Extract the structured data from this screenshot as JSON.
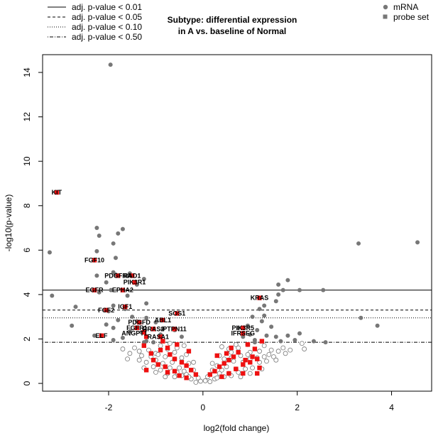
{
  "chart_data": {
    "type": "scatter",
    "title_lines": [
      "Subtype: differential expression",
      "in A vs. baseline of Normal"
    ],
    "xlabel": "log2(fold change)",
    "ylabel": "-log10(p-value)",
    "xlim": [
      -3.4,
      4.85
    ],
    "ylim": [
      -0.35,
      14.8
    ],
    "xticks": [
      -2,
      0,
      2,
      4
    ],
    "yticks": [
      0,
      2,
      4,
      6,
      8,
      10,
      12,
      14
    ],
    "grid": false,
    "thresholds": [
      {
        "label": "adj. p-value < 0.01",
        "style": "solid",
        "y": 4.2
      },
      {
        "label": "adj. p-value < 0.05",
        "style": "dashed",
        "y": 3.3
      },
      {
        "label": "adj. p-value < 0.10",
        "style": "dotted",
        "y": 2.95
      },
      {
        "label": "adj. p-value < 0.50",
        "style": "dotdash",
        "y": 1.85
      }
    ],
    "legend_position": "top-right",
    "series": [
      {
        "name": "mRNA",
        "marker": "circle",
        "color": "#777777",
        "points": [
          [
            -1.96,
            14.35
          ],
          [
            -3.25,
            5.9
          ],
          [
            -3.2,
            3.95
          ],
          [
            -2.7,
            3.45
          ],
          [
            -2.78,
            2.6
          ],
          [
            -2.25,
            7.0
          ],
          [
            -2.2,
            6.65
          ],
          [
            -1.8,
            6.75
          ],
          [
            -1.9,
            6.3
          ],
          [
            -1.7,
            6.95
          ],
          [
            -2.25,
            5.95
          ],
          [
            -2.25,
            4.85
          ],
          [
            -1.85,
            5.65
          ],
          [
            -1.9,
            5.0
          ],
          [
            -1.85,
            4.9
          ],
          [
            -1.55,
            4.95
          ],
          [
            -1.25,
            4.7
          ],
          [
            -1.4,
            4.45
          ],
          [
            -2.05,
            4.55
          ],
          [
            -1.95,
            4.2
          ],
          [
            -2.2,
            4.1
          ],
          [
            -1.6,
            3.95
          ],
          [
            -1.2,
            3.6
          ],
          [
            -1.9,
            3.5
          ],
          [
            -1.65,
            3.35
          ],
          [
            -2.0,
            3.25
          ],
          [
            -1.5,
            3.0
          ],
          [
            -1.2,
            2.95
          ],
          [
            -1.8,
            2.85
          ],
          [
            -1.4,
            2.8
          ],
          [
            -1.0,
            2.75
          ],
          [
            -2.05,
            2.65
          ],
          [
            -1.9,
            2.5
          ],
          [
            -1.55,
            2.35
          ],
          [
            -1.3,
            2.3
          ],
          [
            -0.85,
            2.45
          ],
          [
            -0.6,
            2.4
          ],
          [
            -0.45,
            2.1
          ],
          [
            -1.7,
            2.05
          ],
          [
            -1.2,
            1.9
          ],
          [
            -0.9,
            2.2
          ],
          [
            -2.3,
            2.15
          ],
          [
            -1.9,
            1.95
          ],
          [
            3.3,
            6.3
          ],
          [
            4.55,
            6.35
          ],
          [
            2.55,
            4.2
          ],
          [
            2.05,
            4.2
          ],
          [
            1.8,
            4.65
          ],
          [
            1.6,
            4.45
          ],
          [
            1.7,
            4.2
          ],
          [
            1.6,
            4.0
          ],
          [
            1.55,
            3.7
          ],
          [
            1.3,
            3.5
          ],
          [
            1.2,
            3.35
          ],
          [
            1.05,
            3.0
          ],
          [
            1.25,
            2.8
          ],
          [
            1.3,
            3.05
          ],
          [
            0.95,
            2.6
          ],
          [
            1.15,
            2.4
          ],
          [
            1.35,
            2.15
          ],
          [
            1.45,
            2.55
          ],
          [
            1.55,
            2.1
          ],
          [
            1.65,
            1.9
          ],
          [
            1.8,
            2.15
          ],
          [
            1.95,
            1.95
          ],
          [
            2.05,
            2.25
          ],
          [
            2.1,
            1.8
          ],
          [
            0.85,
            2.1
          ],
          [
            0.75,
            2.5
          ],
          [
            1.0,
            2.2
          ],
          [
            1.1,
            1.95
          ],
          [
            3.35,
            2.95
          ],
          [
            3.7,
            2.6
          ],
          [
            2.6,
            1.85
          ],
          [
            2.35,
            1.9
          ],
          [
            -0.2,
            0.6
          ],
          [
            0.2,
            0.6
          ],
          [
            -0.3,
            0.9
          ],
          [
            0.3,
            0.8
          ],
          [
            -0.45,
            1.15
          ],
          [
            0.45,
            1.1
          ],
          [
            -0.6,
            1.4
          ],
          [
            0.6,
            1.4
          ],
          [
            -0.75,
            1.55
          ],
          [
            0.75,
            1.6
          ],
          [
            -0.9,
            1.7
          ],
          [
            0.95,
            1.75
          ],
          [
            -1.05,
            1.85
          ],
          [
            1.1,
            1.85
          ],
          [
            -1.25,
            1.85
          ],
          [
            1.3,
            1.7
          ],
          [
            -0.35,
            0.4
          ],
          [
            0.35,
            0.45
          ],
          [
            -0.5,
            0.7
          ],
          [
            0.5,
            0.75
          ],
          [
            -0.65,
            0.95
          ],
          [
            0.65,
            1.0
          ],
          [
            -0.8,
            1.2
          ],
          [
            0.8,
            1.25
          ],
          [
            -1.0,
            1.35
          ],
          [
            1.0,
            1.4
          ],
          [
            -1.15,
            1.5
          ],
          [
            1.2,
            1.45
          ],
          [
            -1.35,
            1.45
          ],
          [
            1.4,
            1.3
          ],
          [
            -0.1,
            0.25
          ],
          [
            0.1,
            0.3
          ],
          [
            -0.25,
            0.2
          ],
          [
            0.25,
            0.2
          ],
          [
            -0.4,
            0.55
          ],
          [
            0.4,
            0.6
          ],
          [
            -0.55,
            0.5
          ],
          [
            0.55,
            0.45
          ],
          [
            -0.7,
            0.7
          ],
          [
            0.7,
            0.65
          ],
          [
            -0.85,
            0.9
          ],
          [
            0.85,
            0.95
          ],
          [
            -1.0,
            1.05
          ],
          [
            1.0,
            1.1
          ],
          [
            -1.1,
            1.2
          ],
          [
            1.15,
            1.15
          ],
          [
            -1.3,
            1.25
          ],
          [
            1.3,
            1.2
          ],
          [
            -1.45,
            1.6
          ],
          [
            1.45,
            1.5
          ],
          [
            -0.05,
            0.1
          ],
          [
            0.05,
            0.12
          ],
          [
            -0.15,
            0.05
          ],
          [
            0.15,
            0.08
          ],
          [
            -0.3,
            0.3
          ],
          [
            0.3,
            0.25
          ],
          [
            -0.45,
            0.35
          ],
          [
            0.45,
            0.3
          ],
          [
            -0.6,
            0.3
          ],
          [
            0.6,
            0.35
          ],
          [
            -0.75,
            0.45
          ],
          [
            0.75,
            0.5
          ],
          [
            -0.9,
            0.6
          ],
          [
            0.9,
            0.65
          ],
          [
            -1.05,
            0.75
          ],
          [
            1.05,
            0.7
          ],
          [
            -1.2,
            0.95
          ],
          [
            1.2,
            0.95
          ],
          [
            -1.35,
            1.05
          ],
          [
            1.35,
            1.0
          ],
          [
            -0.35,
            1.3
          ],
          [
            0.35,
            1.25
          ],
          [
            -0.55,
            1.6
          ],
          [
            0.55,
            1.55
          ],
          [
            -0.7,
            1.8
          ],
          [
            0.7,
            1.75
          ],
          [
            -0.2,
            0.95
          ],
          [
            0.2,
            0.9
          ],
          [
            -0.4,
            1.7
          ],
          [
            0.4,
            1.65
          ],
          [
            -0.95,
            1.3
          ],
          [
            0.95,
            1.3
          ],
          [
            -0.6,
            1.1
          ],
          [
            0.6,
            1.15
          ],
          [
            -0.8,
            0.3
          ],
          [
            0.8,
            0.3
          ],
          [
            -1.0,
            0.5
          ],
          [
            1.0,
            0.45
          ],
          [
            -1.25,
            0.7
          ],
          [
            1.25,
            0.65
          ],
          [
            1.5,
            1.2
          ],
          [
            1.6,
            1.45
          ],
          [
            1.7,
            1.6
          ],
          [
            1.75,
            1.35
          ],
          [
            1.85,
            1.5
          ],
          [
            2.15,
            1.55
          ],
          [
            1.55,
            1.05
          ],
          [
            -1.55,
            1.35
          ],
          [
            -1.6,
            1.1
          ],
          [
            -1.7,
            1.55
          ]
        ]
      },
      {
        "name": "probe set",
        "marker": "square",
        "color": "#ee1111",
        "points": [
          [
            -3.1,
            8.6
          ],
          [
            -2.3,
            5.55
          ],
          [
            -1.8,
            4.85
          ],
          [
            -1.5,
            4.85
          ],
          [
            -1.45,
            4.55
          ],
          [
            -2.3,
            4.2
          ],
          [
            -1.7,
            4.2
          ],
          [
            -2.05,
            3.3
          ],
          [
            -1.65,
            3.45
          ],
          [
            -0.55,
            3.15
          ],
          [
            -0.85,
            2.85
          ],
          [
            -1.35,
            2.75
          ],
          [
            -1.4,
            2.5
          ],
          [
            -1.05,
            2.45
          ],
          [
            -1.25,
            2.3
          ],
          [
            -0.6,
            2.45
          ],
          [
            -1.2,
            2.1
          ],
          [
            -0.9,
            2.1
          ],
          [
            -2.15,
            2.15
          ],
          [
            1.2,
            3.85
          ],
          [
            0.85,
            2.5
          ],
          [
            0.85,
            2.25
          ],
          [
            1.25,
            1.9
          ],
          [
            0.95,
            1.75
          ],
          [
            -0.9,
            1.5
          ],
          [
            -0.7,
            1.3
          ],
          [
            -0.6,
            1.1
          ],
          [
            -0.45,
            0.95
          ],
          [
            -0.35,
            0.8
          ],
          [
            -0.25,
            0.6
          ],
          [
            -0.15,
            0.4
          ],
          [
            0.15,
            0.4
          ],
          [
            0.25,
            0.55
          ],
          [
            0.35,
            0.75
          ],
          [
            0.45,
            0.9
          ],
          [
            0.55,
            1.05
          ],
          [
            0.65,
            1.2
          ],
          [
            0.75,
            1.4
          ],
          [
            1.1,
            1.55
          ],
          [
            1.05,
            1.2
          ],
          [
            0.9,
            1.05
          ],
          [
            -1.1,
            1.35
          ],
          [
            -1.25,
            1.7
          ],
          [
            -0.8,
            0.75
          ],
          [
            -0.6,
            0.55
          ],
          [
            -0.5,
            0.35
          ],
          [
            -0.35,
            0.25
          ],
          [
            0.4,
            0.3
          ],
          [
            0.55,
            0.45
          ],
          [
            0.7,
            0.65
          ],
          [
            0.85,
            0.85
          ],
          [
            1.0,
            0.95
          ],
          [
            1.15,
            1.1
          ],
          [
            1.2,
            0.7
          ],
          [
            -1.05,
            1.05
          ],
          [
            -0.95,
            0.85
          ],
          [
            -0.75,
            1.6
          ],
          [
            -0.55,
            1.75
          ],
          [
            0.6,
            1.6
          ],
          [
            0.5,
            1.35
          ],
          [
            -1.2,
            0.6
          ],
          [
            -0.3,
            1.45
          ],
          [
            0.3,
            1.25
          ],
          [
            -0.85,
            1.9
          ],
          [
            -0.75,
            0.5
          ],
          [
            0.85,
            0.45
          ],
          [
            1.15,
            0.45
          ]
        ]
      }
    ],
    "annotations": [
      {
        "text": "KIT",
        "x": -3.1,
        "y": 8.6
      },
      {
        "text": "FGF10",
        "x": -2.3,
        "y": 5.55
      },
      {
        "text": "PDGFRA",
        "x": -1.8,
        "y": 4.85
      },
      {
        "text": "RAD1",
        "x": -1.5,
        "y": 4.85
      },
      {
        "text": "PIK3R1",
        "x": -1.45,
        "y": 4.55
      },
      {
        "text": "EGFR",
        "x": -2.3,
        "y": 4.2
      },
      {
        "text": "EPHA2",
        "x": -1.7,
        "y": 4.2
      },
      {
        "text": "FGF2",
        "x": -2.05,
        "y": 3.3
      },
      {
        "text": "IGF1",
        "x": -1.65,
        "y": 3.45
      },
      {
        "text": "SOS1",
        "x": -0.55,
        "y": 3.15
      },
      {
        "text": "ABL1",
        "x": -0.85,
        "y": 2.85
      },
      {
        "text": "PDGFD",
        "x": -1.35,
        "y": 2.75
      },
      {
        "text": "FGFR1",
        "x": -1.4,
        "y": 2.5
      },
      {
        "text": "RRAS2",
        "x": -1.05,
        "y": 2.45
      },
      {
        "text": "ANGPT1",
        "x": -1.45,
        "y": 2.25
      },
      {
        "text": "PTPN11",
        "x": -0.6,
        "y": 2.45
      },
      {
        "text": "RASA1",
        "x": -0.95,
        "y": 2.1
      },
      {
        "text": "ELF",
        "x": -2.15,
        "y": 2.15
      },
      {
        "text": "KRAS",
        "x": 1.2,
        "y": 3.85
      },
      {
        "text": "PIK3R5",
        "x": 0.85,
        "y": 2.5
      },
      {
        "text": "IFRSEG",
        "x": 0.85,
        "y": 2.25
      }
    ]
  }
}
